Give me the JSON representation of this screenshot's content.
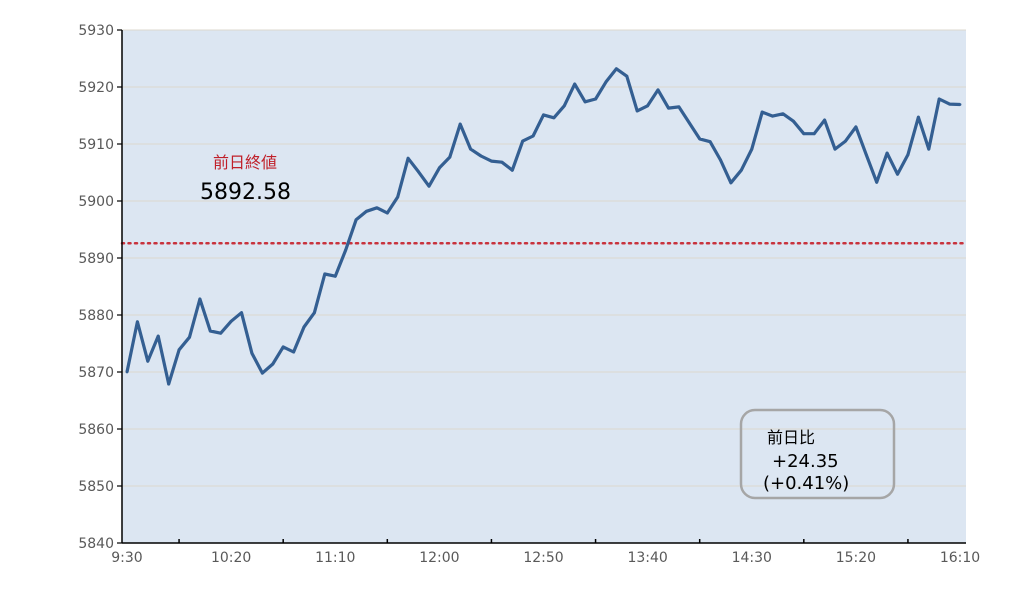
{
  "chart_data": {
    "type": "line",
    "title": "",
    "xlabel": "",
    "ylabel": "",
    "ylim": [
      5840,
      5930
    ],
    "yticks": [
      5840,
      5850,
      5860,
      5870,
      5880,
      5890,
      5900,
      5910,
      5920,
      5930
    ],
    "xtick_labels": [
      "9:30",
      "10:20",
      "11:10",
      "12:00",
      "12:50",
      "13:40",
      "14:30",
      "15:20",
      "16:10"
    ],
    "x_start": "9:30",
    "x_end": "16:10",
    "interval_minutes": 5,
    "grid": true,
    "colors": {
      "line": "#345f92",
      "plot_bg": "#dce6f2",
      "grid": "#dcd8cf",
      "reference": "#c8323c",
      "reference_label": "#c0202a",
      "box_border": "#a6a6a6"
    },
    "values": [
      5870.0,
      5878.8,
      5871.9,
      5876.3,
      5867.9,
      5873.9,
      5876.1,
      5882.8,
      5877.2,
      5876.8,
      5878.9,
      5880.4,
      5873.3,
      5869.8,
      5871.4,
      5874.4,
      5873.5,
      5877.9,
      5880.4,
      5887.2,
      5886.8,
      5891.4,
      5896.7,
      5898.2,
      5898.8,
      5897.9,
      5900.7,
      5907.5,
      5905.1,
      5902.6,
      5905.8,
      5907.7,
      5913.5,
      5909.1,
      5907.9,
      5907.0,
      5906.8,
      5905.4,
      5910.5,
      5911.4,
      5915.1,
      5914.6,
      5916.7,
      5920.5,
      5917.4,
      5917.9,
      5920.9,
      5923.2,
      5921.9,
      5915.8,
      5916.7,
      5919.5,
      5916.3,
      5916.5,
      5913.7,
      5910.9,
      5910.4,
      5907.2,
      5903.2,
      5905.4,
      5909.1,
      5915.6,
      5914.9,
      5915.3,
      5914.0,
      5911.8,
      5911.8,
      5914.2,
      5909.1,
      5910.5,
      5913.0,
      5908.1,
      5903.3,
      5908.4,
      5904.7,
      5908.1,
      5914.7,
      5909.1,
      5917.9,
      5917.0,
      5916.93
    ],
    "reference_line": {
      "value": 5892.58,
      "label": "前日終値",
      "value_label": "5892.58"
    },
    "annotation": {
      "line1": "前日比",
      "line2": "+24.35",
      "line3": "(+0.41%)"
    }
  }
}
